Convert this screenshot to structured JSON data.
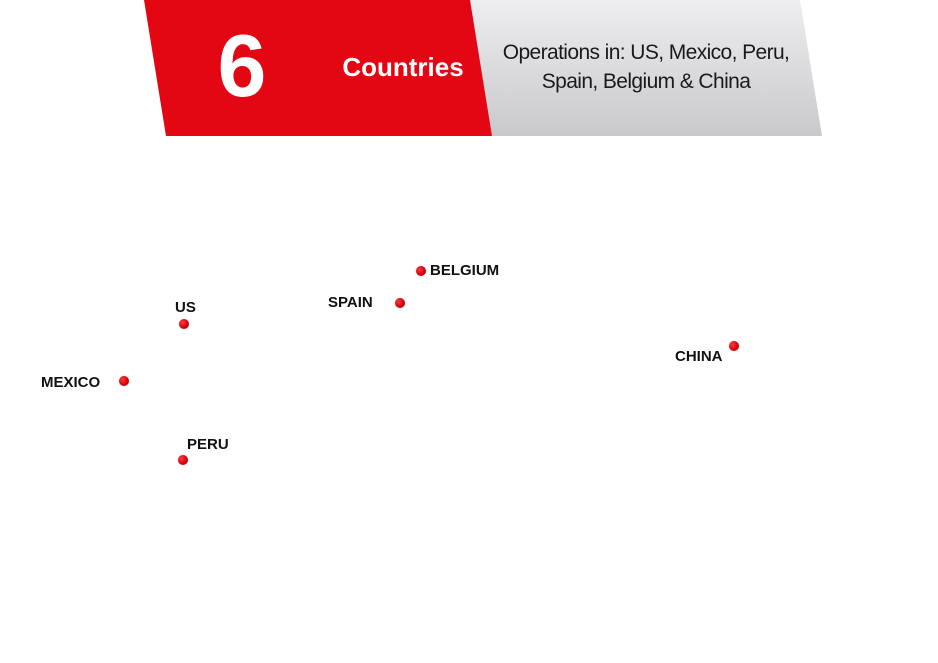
{
  "banner": {
    "count": "6",
    "count_label": "Countries",
    "operations_line1": "Operations in: US, Mexico, Peru,",
    "operations_line2": "Spain, Belgium & China",
    "accent_color": "#e30613",
    "panel_color": "#d9d9db"
  },
  "locations": [
    {
      "id": "us",
      "label": "US"
    },
    {
      "id": "mexico",
      "label": "MEXICO"
    },
    {
      "id": "peru",
      "label": "PERU"
    },
    {
      "id": "spain",
      "label": "SPAIN"
    },
    {
      "id": "belgium",
      "label": "BELGIUM"
    },
    {
      "id": "china",
      "label": "CHINA"
    }
  ],
  "marker_color": "#d80010"
}
